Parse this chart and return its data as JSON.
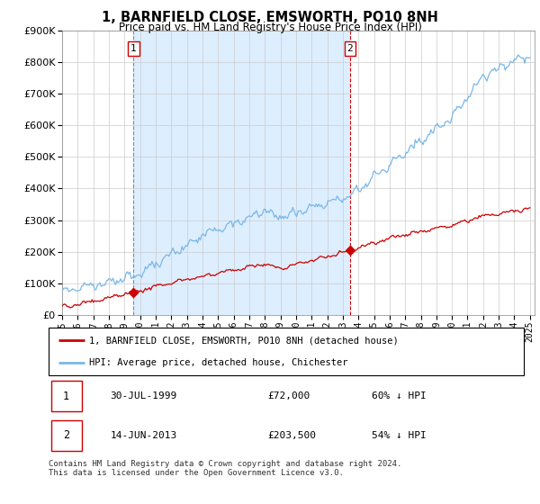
{
  "title": "1, BARNFIELD CLOSE, EMSWORTH, PO10 8NH",
  "subtitle": "Price paid vs. HM Land Registry's House Price Index (HPI)",
  "legend_line1": "1, BARNFIELD CLOSE, EMSWORTH, PO10 8NH (detached house)",
  "legend_line2": "HPI: Average price, detached house, Chichester",
  "sale1_date": 1999.58,
  "sale1_price": 72000,
  "sale1_label": "1",
  "sale1_text": "30-JUL-1999",
  "sale1_price_text": "£72,000",
  "sale1_pct_text": "60% ↓ HPI",
  "sale2_date": 2013.45,
  "sale2_price": 203500,
  "sale2_label": "2",
  "sale2_text": "14-JUN-2013",
  "sale2_price_text": "£203,500",
  "sale2_pct_text": "54% ↓ HPI",
  "footer": "Contains HM Land Registry data © Crown copyright and database right 2024.\nThis data is licensed under the Open Government Licence v3.0.",
  "hpi_color": "#7ab8e8",
  "price_color": "#cc0000",
  "shade_color": "#ddeeff",
  "vline1_color": "#999999",
  "vline2_color": "#cc0000",
  "ylim": [
    0,
    900000
  ],
  "xlim_start": 1995.0,
  "xlim_end": 2025.3
}
